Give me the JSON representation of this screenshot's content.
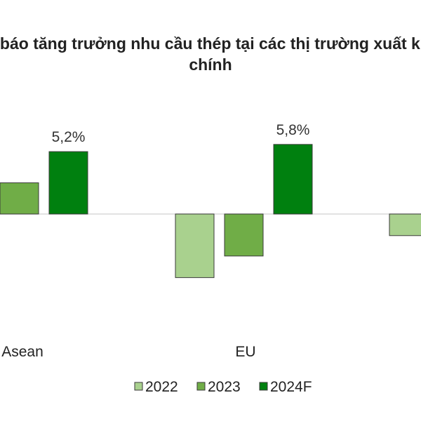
{
  "chart_data": {
    "type": "bar",
    "title_line1": "Dự báo tăng trưởng nhu cầu thép tại các thị trường xuất khẩu",
    "title_line2": "chính",
    "categories": [
      "Asean",
      "EU",
      ""
    ],
    "series": [
      {
        "name": "2022",
        "color": "#a9d18e",
        "values": [
          null,
          -5.3,
          -1.8
        ]
      },
      {
        "name": "2023",
        "color": "#70ad47",
        "values": [
          2.6,
          -3.5,
          null
        ]
      },
      {
        "name": "2024F",
        "color": "#00800f",
        "values": [
          5.2,
          5.8,
          null
        ]
      }
    ],
    "data_labels": [
      {
        "series": 2,
        "category": 0,
        "text": "5,2%"
      },
      {
        "series": 2,
        "category": 1,
        "text": "5,8%"
      }
    ],
    "ylim": [
      -8,
      8
    ],
    "grid": false,
    "legend_position": "bottom"
  }
}
